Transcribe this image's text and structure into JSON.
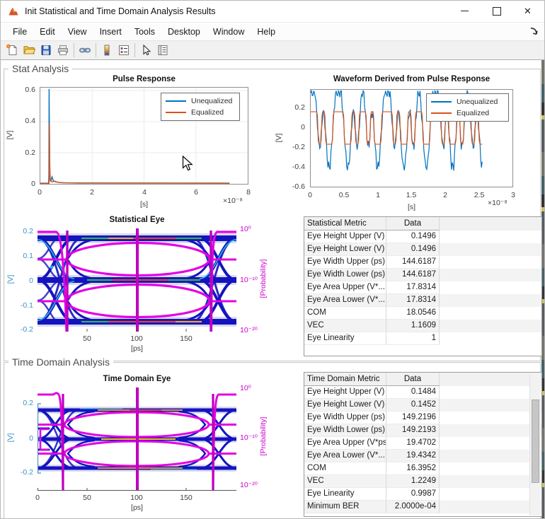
{
  "window": {
    "title": "Init Statistical and Time Domain Analysis Results"
  },
  "menubar": {
    "items": [
      "File",
      "Edit",
      "View",
      "Insert",
      "Tools",
      "Desktop",
      "Window",
      "Help"
    ]
  },
  "toolbar": {
    "buttons": [
      "new-document",
      "open-folder",
      "save",
      "print",
      "link-plot",
      "insert-colorbar",
      "insert-legend",
      "edit-plot",
      "property-inspector"
    ]
  },
  "panels": {
    "stat": {
      "label": "Stat Analysis"
    },
    "time": {
      "label": "Time Domain Analysis"
    }
  },
  "colors": {
    "unequalized": "#0072BD",
    "equalized": "#D95319",
    "eye_density": "#1414BE",
    "eye_contour": "#E203E2",
    "eye_vertical": "#BE00BE",
    "axis_left_blue": "#3D91C8",
    "axis_right_magenta": "#CC00CC"
  },
  "chart_data": [
    {
      "type": "line",
      "title": "Pulse Response",
      "xlabel": "[s]",
      "ylabel": "[V]",
      "x_exponent": "×10⁻⁸",
      "xlim_1e8": [
        0,
        8
      ],
      "ylim": [
        0,
        0.62
      ],
      "xticks": [
        "0",
        "2",
        "4",
        "6",
        "8"
      ],
      "yticks": [
        "0",
        "0.2",
        "0.4",
        "0.6"
      ],
      "legend": [
        "Unequalized",
        "Equalized"
      ],
      "grid": true,
      "series": [
        {
          "name": "Unequalized",
          "points": [
            [
              0,
              0.004
            ],
            [
              0.32,
              0.004
            ],
            [
              0.33,
              0.06
            ],
            [
              0.338,
              0.61
            ],
            [
              0.35,
              0.3
            ],
            [
              0.362,
              0.05
            ],
            [
              0.4,
              0.015
            ],
            [
              0.45,
              0.045
            ],
            [
              0.5,
              0.02
            ],
            [
              0.6,
              0.012
            ],
            [
              0.8,
              0.007
            ],
            [
              1.5,
              0.005
            ],
            [
              7.3,
              0.004
            ]
          ]
        },
        {
          "name": "Equalized",
          "points": [
            [
              0,
              0.003
            ],
            [
              0.335,
              0.003
            ],
            [
              0.345,
              0.05
            ],
            [
              0.352,
              0.385
            ],
            [
              0.365,
              0.12
            ],
            [
              0.385,
              0.02
            ],
            [
              0.46,
              0.012
            ],
            [
              0.55,
              0.018
            ],
            [
              0.66,
              0.01
            ],
            [
              0.9,
              0.007
            ],
            [
              7.3,
              0.005
            ]
          ]
        }
      ]
    },
    {
      "type": "line",
      "title": "Waveform Derived from Pulse Response",
      "xlabel": "[s]",
      "ylabel": "[V]",
      "x_exponent": "×10⁻⁸",
      "xlim_1e8": [
        0,
        3
      ],
      "ylim": [
        -0.6,
        0.39
      ],
      "xticks": [
        "0",
        "0.5",
        "1",
        "1.5",
        "2",
        "2.5",
        "3"
      ],
      "yticks": [
        "0.2",
        "0",
        "-0.2",
        "-0.4",
        "-0.6"
      ],
      "legend": [
        "Unequalized",
        "Equalized"
      ],
      "grid": false,
      "data_end_1e8": 2.55,
      "bits": "1101001110010110100111010010110011101001011010",
      "levels": {
        "equalized_v": 0.165,
        "unequalized_peak_v": 0.38
      }
    },
    {
      "type": "eye-density",
      "title": "Statistical Eye",
      "xlabel": "[ps]",
      "ylabel_left": "[V]",
      "ylabel_right": "[Probability]",
      "xticks": [
        "50",
        "100",
        "150"
      ],
      "yticks_left": [
        "0.2",
        "0.1",
        "0",
        "-0.1",
        "-0.2"
      ],
      "yticks_right": [
        "10⁰",
        "10⁻¹⁰",
        "10⁻²⁰"
      ],
      "xlim_ps": [
        0,
        200
      ],
      "contour_vertical_lines_ps": [
        30,
        100,
        175
      ]
    },
    {
      "type": "eye-density",
      "title": "Time Domain Eye",
      "xlabel": "[ps]",
      "ylabel_left": "[V]",
      "ylabel_right": "[Probability]",
      "xticks": [
        "0",
        "50",
        "100",
        "150"
      ],
      "yticks_left": [
        "0.2",
        "0",
        "-0.2"
      ],
      "yticks_right": [
        "10⁰",
        "10⁻¹⁰",
        "10⁻²⁰"
      ],
      "xlim_ps": [
        0,
        200
      ],
      "contour_vertical_lines_ps": [
        25,
        100,
        178
      ]
    }
  ],
  "tables": {
    "stat": {
      "headers": [
        "Statistical Metric",
        "Data"
      ],
      "rows": [
        [
          "Eye Height Upper (V)",
          "0.1496"
        ],
        [
          "Eye Height Lower (V)",
          "0.1496"
        ],
        [
          "Eye Width Upper (ps)",
          "144.6187"
        ],
        [
          "Eye Width Lower (ps)",
          "144.6187"
        ],
        [
          "Eye Area Upper (V*...",
          "17.8314"
        ],
        [
          "Eye Area Lower (V*...",
          "17.8314"
        ],
        [
          "COM",
          "18.0546"
        ],
        [
          "VEC",
          "1.1609"
        ],
        [
          "Eye Linearity",
          "1"
        ]
      ]
    },
    "time": {
      "headers": [
        "Time Domain Metric",
        "Data"
      ],
      "rows": [
        [
          "Eye Height Upper (V)",
          "0.1484"
        ],
        [
          "Eye Height Lower (V)",
          "0.1452"
        ],
        [
          "Eye Width Upper (ps)",
          "149.2196"
        ],
        [
          "Eye Width Lower (ps)",
          "149.2193"
        ],
        [
          "Eye Area Upper (V*ps)",
          "19.4702"
        ],
        [
          "Eye Area Lower (V*...",
          "19.4342"
        ],
        [
          "COM",
          "16.3952"
        ],
        [
          "VEC",
          "1.2249"
        ],
        [
          "Eye Linearity",
          "0.9987"
        ],
        [
          "Minimum BER",
          "2.0000e-04"
        ]
      ]
    }
  }
}
